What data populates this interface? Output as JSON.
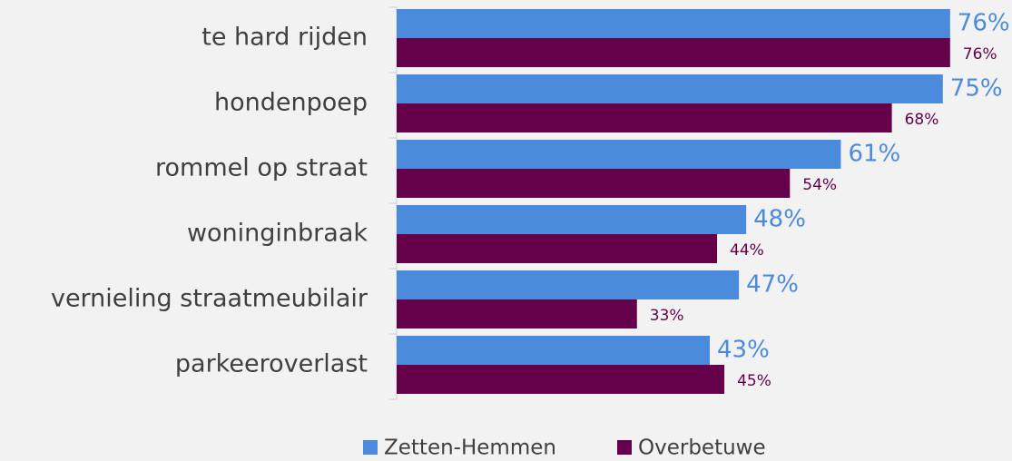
{
  "chart_data": {
    "type": "bar",
    "orientation": "horizontal",
    "categories": [
      "te hard rijden",
      "hondenpoep",
      "rommel op straat",
      "woninginbraak",
      "vernieling straatmeubilair",
      "parkeeroverlast"
    ],
    "series": [
      {
        "name": "Zetten-Hemmen",
        "color": "#4a8bdc",
        "values": [
          76,
          75,
          61,
          48,
          47,
          43
        ],
        "value_labels": [
          "76%",
          "75%",
          "61%",
          "48%",
          "47%",
          "43%"
        ]
      },
      {
        "name": "Overbetuwe",
        "color": "#65004a",
        "values": [
          76,
          68,
          54,
          44,
          33,
          45
        ],
        "value_labels": [
          "76%",
          "68%",
          "54%",
          "44%",
          "33%",
          "45%"
        ]
      }
    ],
    "xlim": [
      0,
      84
    ],
    "legend": "bottom"
  }
}
